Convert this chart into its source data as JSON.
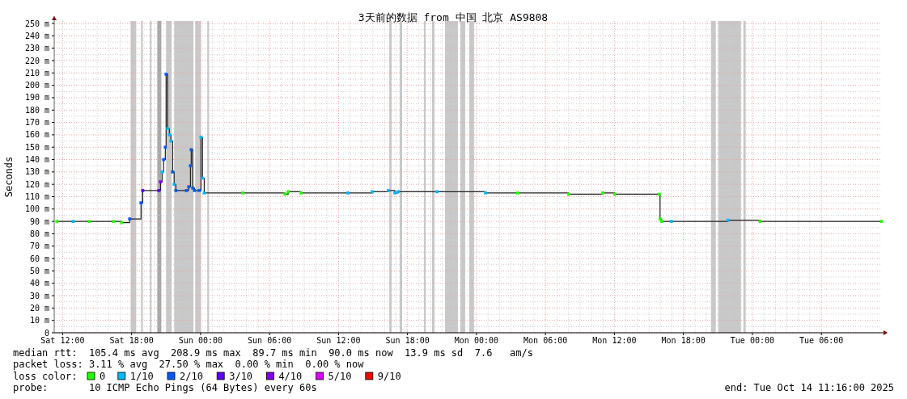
{
  "chart_data": {
    "type": "step",
    "title": "3天前的数据 from 中国 北京 AS9808",
    "ylabel": "Seconds",
    "legend_title": "loss color:",
    "legend": "bottom",
    "grid": true,
    "xlim": [
      "2025-10-11T11:16",
      "2025-10-14T11:16"
    ],
    "ylim": [
      0,
      252
    ],
    "xticks": [
      {
        "value": "2025-10-11T12:00",
        "label": "Sat 12:00"
      },
      {
        "value": "2025-10-11T18:00",
        "label": "Sat 18:00"
      },
      {
        "value": "2025-10-12T00:00",
        "label": "Sun 00:00"
      },
      {
        "value": "2025-10-12T06:00",
        "label": "Sun 06:00"
      },
      {
        "value": "2025-10-12T12:00",
        "label": "Sun 12:00"
      },
      {
        "value": "2025-10-12T18:00",
        "label": "Sun 18:00"
      },
      {
        "value": "2025-10-13T00:00",
        "label": "Mon 00:00"
      },
      {
        "value": "2025-10-13T06:00",
        "label": "Mon 06:00"
      },
      {
        "value": "2025-10-13T12:00",
        "label": "Mon 12:00"
      },
      {
        "value": "2025-10-13T18:00",
        "label": "Mon 18:00"
      },
      {
        "value": "2025-10-14T00:00",
        "label": "Tue 00:00"
      },
      {
        "value": "2025-10-14T06:00",
        "label": "Tue 06:00"
      }
    ],
    "yticks": [
      0,
      {
        "value": 10,
        "label": "10 m"
      },
      {
        "value": 20,
        "label": "20 m"
      },
      {
        "value": 30,
        "label": "30 m"
      },
      {
        "value": 40,
        "label": "40 m"
      },
      {
        "value": 50,
        "label": "50 m"
      },
      {
        "value": 60,
        "label": "60 m"
      },
      {
        "value": 70,
        "label": "70 m"
      },
      {
        "value": 80,
        "label": "80 m"
      },
      {
        "value": 90,
        "label": "90 m"
      },
      {
        "value": 100,
        "label": "100 m"
      },
      {
        "value": 110,
        "label": "110 m"
      },
      {
        "value": 120,
        "label": "120 m"
      },
      {
        "value": 130,
        "label": "130 m"
      },
      {
        "value": 140,
        "label": "140 m"
      },
      {
        "value": 150,
        "label": "150 m"
      },
      {
        "value": 160,
        "label": "160 m"
      },
      {
        "value": 170,
        "label": "170 m"
      },
      {
        "value": 180,
        "label": "180 m"
      },
      {
        "value": 190,
        "label": "190 m"
      },
      {
        "value": 200,
        "label": "200 m"
      },
      {
        "value": 210,
        "label": "210 m"
      },
      {
        "value": 220,
        "label": "220 m"
      },
      {
        "value": 230,
        "label": "230 m"
      },
      {
        "value": 240,
        "label": "240 m"
      },
      {
        "value": 250,
        "label": "250 m"
      }
    ],
    "bands": [
      {
        "axis": "x",
        "from": "2025-10-11T17:55",
        "to": "2025-10-11T18:24",
        "color": "#c8c8c8"
      },
      {
        "axis": "x",
        "from": "2025-10-11T18:49",
        "to": "2025-10-11T18:58",
        "color": "#c8c8c8"
      },
      {
        "axis": "x",
        "from": "2025-10-11T19:35",
        "to": "2025-10-11T19:44",
        "color": "#c8c8c8"
      },
      {
        "axis": "x",
        "from": "2025-10-11T20:14",
        "to": "2025-10-11T20:35",
        "color": "#a8a8a8"
      },
      {
        "axis": "x",
        "from": "2025-10-11T21:00",
        "to": "2025-10-11T21:29",
        "color": "#c8c8c8"
      },
      {
        "axis": "x",
        "from": "2025-10-11T21:42",
        "to": "2025-10-11T23:23",
        "color": "#c8c8c8"
      },
      {
        "axis": "x",
        "from": "2025-10-11T23:32",
        "to": "2025-10-12T00:02",
        "color": "#c8c8c8"
      },
      {
        "axis": "x",
        "from": "2025-10-12T00:35",
        "to": "2025-10-12T00:44",
        "color": "#c8c8c8"
      },
      {
        "axis": "x",
        "from": "2025-10-12T16:25",
        "to": "2025-10-12T16:37",
        "color": "#c8c8c8"
      },
      {
        "axis": "x",
        "from": "2025-10-12T17:19",
        "to": "2025-10-12T17:32",
        "color": "#c8c8c8"
      },
      {
        "axis": "x",
        "from": "2025-10-12T19:26",
        "to": "2025-10-12T19:35",
        "color": "#c8c8c8"
      },
      {
        "axis": "x",
        "from": "2025-10-12T20:08",
        "to": "2025-10-12T20:21",
        "color": "#c8c8c8"
      },
      {
        "axis": "x",
        "from": "2025-10-12T21:16",
        "to": "2025-10-12T22:23",
        "color": "#c8c8c8"
      },
      {
        "axis": "x",
        "from": "2025-10-12T22:36",
        "to": "2025-10-12T23:01",
        "color": "#c8c8c8"
      },
      {
        "axis": "x",
        "from": "2025-10-12T23:22",
        "to": "2025-10-12T23:47",
        "color": "#c8c8c8"
      },
      {
        "axis": "x",
        "from": "2025-10-13T20:24",
        "to": "2025-10-13T20:49",
        "color": "#c8c8c8"
      },
      {
        "axis": "x",
        "from": "2025-10-13T21:02",
        "to": "2025-10-13T23:00",
        "color": "#c8c8c8"
      },
      {
        "axis": "x",
        "from": "2025-10-13T23:13",
        "to": "2025-10-13T23:25",
        "color": "#c8c8c8"
      }
    ],
    "series": [
      {
        "color": "#202020",
        "x": [
          "2025-10-11T11:30",
          "2025-10-11T12:55",
          "2025-10-11T14:19",
          "2025-10-11T16:26",
          "2025-10-11T17:08",
          "2025-10-11T17:50",
          "2025-10-11T18:49",
          "2025-10-11T18:58",
          "2025-10-11T20:22",
          "2025-10-11T20:31",
          "2025-10-11T20:39",
          "2025-10-11T20:47",
          "2025-10-11T20:56",
          "2025-10-11T21:00",
          "2025-10-11T21:08",
          "2025-10-11T21:17",
          "2025-10-11T21:25",
          "2025-10-11T21:34",
          "2025-10-11T21:42",
          "2025-10-11T21:51",
          "2025-10-11T22:46",
          "2025-10-11T22:58",
          "2025-10-11T23:07",
          "2025-10-11T23:11",
          "2025-10-11T23:19",
          "2025-10-11T23:28",
          "2025-10-11T23:53",
          "2025-10-12T00:02",
          "2025-10-12T00:10",
          "2025-10-12T00:19",
          "2025-10-12T03:41",
          "2025-10-12T07:20",
          "2025-10-12T07:37",
          "2025-10-12T08:45",
          "2025-10-12T12:49",
          "2025-10-12T14:56",
          "2025-10-12T16:20",
          "2025-10-12T16:54",
          "2025-10-12T17:11",
          "2025-10-12T20:34",
          "2025-10-13T00:47",
          "2025-10-13T03:35",
          "2025-10-13T08:01",
          "2025-10-13T10:59",
          "2025-10-13T12:02",
          "2025-10-13T15:54",
          "2025-10-13T15:58",
          "2025-10-13T16:07",
          "2025-10-13T16:57",
          "2025-10-13T21:53",
          "2025-10-14T00:41",
          "2025-10-14T11:14"
        ],
        "values": [
          90,
          90,
          90,
          90,
          89,
          92,
          105,
          115,
          115,
          122,
          130,
          140,
          150,
          209,
          165,
          160,
          155,
          130,
          120,
          115,
          115,
          118,
          135,
          148,
          117,
          115,
          115,
          158,
          125,
          113,
          113,
          112,
          114,
          113,
          113,
          114,
          115,
          113,
          114,
          114,
          113,
          113,
          112,
          113,
          112,
          112,
          92,
          90,
          90,
          91,
          90,
          90
        ]
      },
      {
        "type": "scatter",
        "marker": "square",
        "name": "0",
        "color": "#26ff00",
        "x": [
          "2025-10-11T11:30",
          "2025-10-11T14:19",
          "2025-10-11T16:26",
          "2025-10-11T17:08",
          "2025-10-12T03:41",
          "2025-10-12T07:20",
          "2025-10-12T07:37",
          "2025-10-12T08:45",
          "2025-10-13T03:35",
          "2025-10-13T08:01",
          "2025-10-13T10:59",
          "2025-10-13T12:02",
          "2025-10-13T15:54",
          "2025-10-13T15:58",
          "2025-10-13T16:07",
          "2025-10-14T00:41",
          "2025-10-14T11:14"
        ],
        "values": [
          90,
          90,
          90,
          89,
          113,
          112,
          114,
          113,
          113,
          112,
          113,
          112,
          112,
          92,
          90,
          90,
          90
        ]
      },
      {
        "type": "scatter",
        "marker": "square",
        "name": "1/10",
        "color": "#00b8ff",
        "x": [
          "2025-10-11T12:55",
          "2025-10-11T20:39",
          "2025-10-11T21:08",
          "2025-10-11T21:17",
          "2025-10-11T21:25",
          "2025-10-11T21:42",
          "2025-10-12T00:02",
          "2025-10-12T00:10",
          "2025-10-12T00:19",
          "2025-10-12T12:49",
          "2025-10-12T14:56",
          "2025-10-12T16:20",
          "2025-10-12T16:54",
          "2025-10-12T17:11",
          "2025-10-12T20:34",
          "2025-10-13T00:47",
          "2025-10-13T16:57",
          "2025-10-13T21:53"
        ],
        "values": [
          90,
          130,
          165,
          160,
          155,
          120,
          158,
          125,
          113,
          113,
          114,
          115,
          113,
          114,
          114,
          113,
          90,
          91
        ]
      },
      {
        "type": "scatter",
        "marker": "square",
        "name": "2/10",
        "color": "#0059ff",
        "x": [
          "2025-10-11T17:50",
          "2025-10-11T18:49",
          "2025-10-11T20:47",
          "2025-10-11T20:56",
          "2025-10-11T21:00",
          "2025-10-11T21:34",
          "2025-10-11T21:51",
          "2025-10-11T22:46",
          "2025-10-11T22:58",
          "2025-10-11T23:07",
          "2025-10-11T23:11",
          "2025-10-11T23:19",
          "2025-10-11T23:28",
          "2025-10-11T23:53"
        ],
        "values": [
          92,
          105,
          140,
          150,
          209,
          130,
          115,
          115,
          118,
          135,
          148,
          117,
          115,
          115
        ]
      },
      {
        "type": "scatter",
        "marker": "square",
        "name": "3/10",
        "color": "#5e00ff",
        "x": [
          "2025-10-11T18:58",
          "2025-10-11T20:22"
        ],
        "values": [
          115,
          115
        ]
      },
      {
        "type": "scatter",
        "marker": "square",
        "name": "4/10",
        "color": "#7e00ff",
        "x": [
          "2025-10-11T20:31"
        ],
        "values": [
          122
        ]
      },
      {
        "type": "scatter",
        "marker": "square",
        "name": "5/10",
        "color": "#dd00ff"
      },
      {
        "type": "scatter",
        "marker": "square",
        "name": "9/10",
        "color": "#ff0000"
      }
    ],
    "annotations": [
      "median rtt:  105.4 ms avg  208.9 ms max  89.7 ms min  90.0 ms now  13.9 ms sd  7.6   am/s",
      "packet loss: 3.11 % avg  27.50 % max  0.00 % min  0.00 % now",
      "probe:       10 ICMP Echo Pings (64 Bytes) every 60s",
      "end: Tue Oct 14 11:16:00 2025"
    ]
  }
}
